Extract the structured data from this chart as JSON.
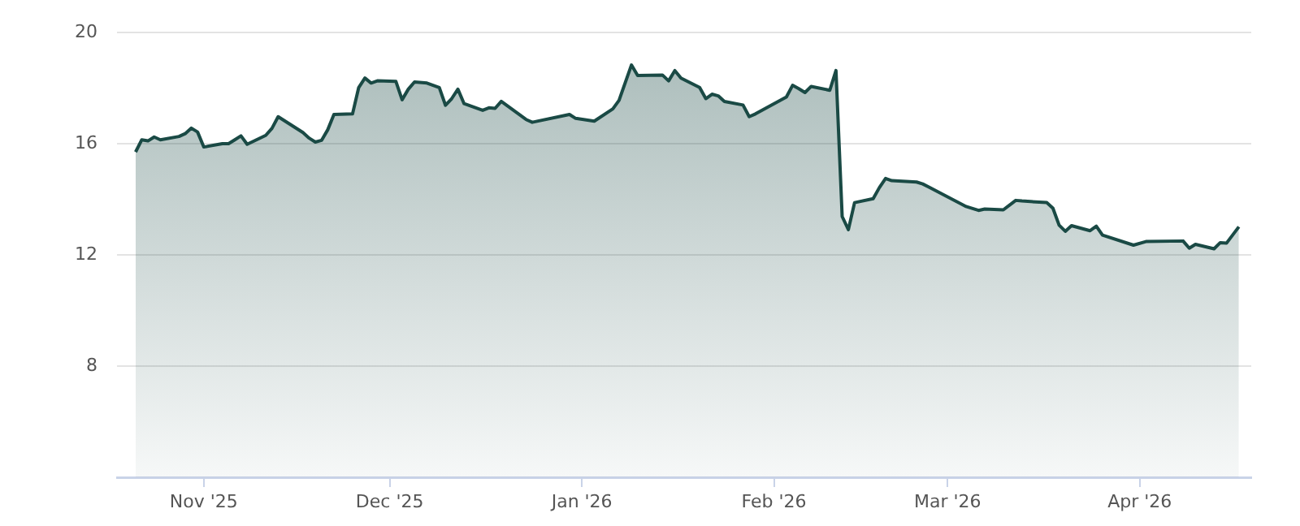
{
  "chart_data": {
    "type": "area",
    "color": "#1a4a45",
    "grid": "y",
    "legend": false,
    "marker": "none",
    "line_style": "solid",
    "ylim": [
      4,
      20
    ],
    "yticks": [
      8,
      12,
      16,
      20
    ],
    "xlim": [
      "2025-10-18",
      "2026-04-19"
    ],
    "xticks": [
      {
        "value": "2025-11-01",
        "label": "Nov '25"
      },
      {
        "value": "2025-12-01",
        "label": "Dec '25"
      },
      {
        "value": "2026-01-01",
        "label": "Jan '26"
      },
      {
        "value": "2026-02-01",
        "label": "Feb '26"
      },
      {
        "value": "2026-03-01",
        "label": "Mar '26"
      },
      {
        "value": "2026-04-01",
        "label": "Apr '26"
      }
    ],
    "x": [
      "2025-10-21",
      "2025-10-22",
      "2025-10-23",
      "2025-10-24",
      "2025-10-25",
      "2025-10-28",
      "2025-10-29",
      "2025-10-30",
      "2025-10-31",
      "2025-11-01",
      "2025-11-04",
      "2025-11-05",
      "2025-11-06",
      "2025-11-07",
      "2025-11-08",
      "2025-11-11",
      "2025-11-12",
      "2025-11-13",
      "2025-11-17",
      "2025-11-18",
      "2025-11-19",
      "2025-11-20",
      "2025-11-21",
      "2025-11-22",
      "2025-11-25",
      "2025-11-26",
      "2025-11-27",
      "2025-11-28",
      "2025-11-29",
      "2025-12-02",
      "2025-12-03",
      "2025-12-04",
      "2025-12-05",
      "2025-12-07",
      "2025-12-09",
      "2025-12-10",
      "2025-12-11",
      "2025-12-12",
      "2025-12-13",
      "2025-12-16",
      "2025-12-17",
      "2025-12-18",
      "2025-12-19",
      "2025-12-23",
      "2025-12-24",
      "2025-12-30",
      "2025-12-31",
      "2026-01-03",
      "2026-01-06",
      "2026-01-07",
      "2026-01-09",
      "2026-01-10",
      "2026-01-14",
      "2026-01-15",
      "2026-01-16",
      "2026-01-17",
      "2026-01-20",
      "2026-01-21",
      "2026-01-22",
      "2026-01-23",
      "2026-01-24",
      "2026-01-27",
      "2026-01-28",
      "2026-01-29",
      "2026-02-03",
      "2026-02-04",
      "2026-02-05",
      "2026-02-06",
      "2026-02-07",
      "2026-02-10",
      "2026-02-11",
      "2026-02-12",
      "2026-02-13",
      "2026-02-14",
      "2026-02-17",
      "2026-02-18",
      "2026-02-19",
      "2026-02-20",
      "2026-02-24",
      "2026-02-25",
      "2026-02-26",
      "2026-03-04",
      "2026-03-06",
      "2026-03-07",
      "2026-03-10",
      "2026-03-12",
      "2026-03-13",
      "2026-03-17",
      "2026-03-18",
      "2026-03-19",
      "2026-03-20",
      "2026-03-21",
      "2026-03-24",
      "2026-03-25",
      "2026-03-26",
      "2026-03-31",
      "2026-04-02",
      "2026-04-08",
      "2026-04-09",
      "2026-04-10",
      "2026-04-13",
      "2026-04-14",
      "2026-04-15",
      "2026-04-17"
    ],
    "values": [
      15.7,
      16.14,
      16.1,
      16.24,
      16.14,
      16.26,
      16.36,
      16.56,
      16.42,
      15.88,
      16.0,
      16.0,
      16.14,
      16.28,
      15.98,
      16.3,
      16.55,
      16.97,
      16.4,
      16.2,
      16.06,
      16.12,
      16.5,
      17.05,
      17.07,
      18.02,
      18.36,
      18.18,
      18.26,
      18.24,
      17.58,
      17.96,
      18.22,
      18.18,
      18.02,
      17.38,
      17.62,
      17.96,
      17.44,
      17.2,
      17.29,
      17.27,
      17.52,
      16.87,
      16.77,
      17.05,
      16.91,
      16.81,
      17.25,
      17.56,
      18.83,
      18.45,
      18.47,
      18.26,
      18.63,
      18.36,
      18.02,
      17.62,
      17.78,
      17.72,
      17.52,
      17.39,
      16.97,
      17.07,
      17.68,
      18.1,
      17.98,
      17.84,
      18.06,
      17.92,
      18.63,
      13.38,
      12.91,
      13.88,
      14.02,
      14.42,
      14.75,
      14.67,
      14.62,
      14.55,
      14.44,
      13.74,
      13.6,
      13.65,
      13.62,
      13.96,
      13.94,
      13.88,
      13.68,
      13.07,
      12.85,
      13.05,
      12.87,
      13.03,
      12.71,
      12.35,
      12.48,
      12.5,
      12.24,
      12.38,
      12.22,
      12.44,
      12.42,
      13.01
    ]
  }
}
